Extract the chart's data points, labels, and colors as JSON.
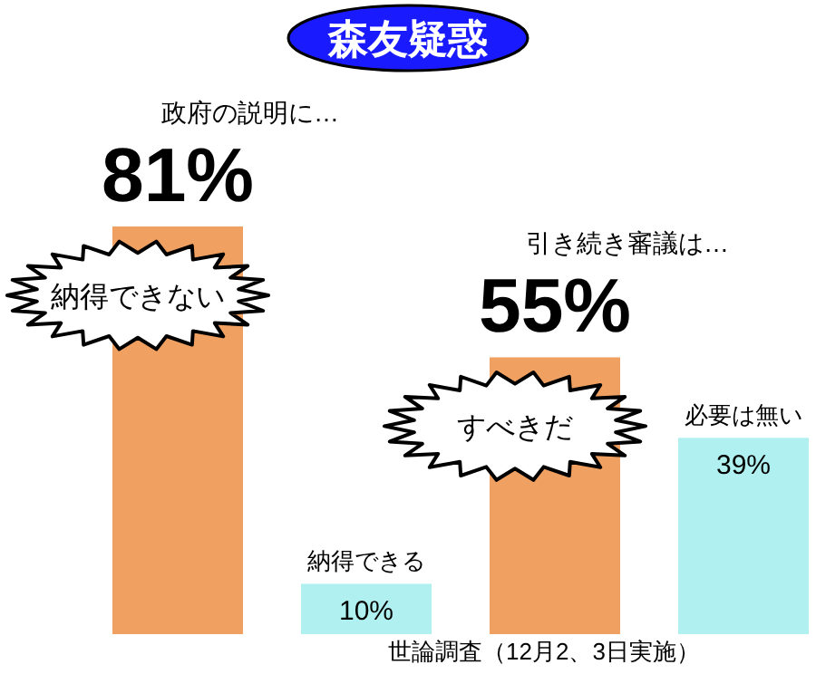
{
  "chart_data": {
    "type": "bar",
    "title": "森友疑惑",
    "categories": [
      "納得できない",
      "納得できる",
      "すべきだ",
      "必要は無い"
    ],
    "values": [
      81,
      10,
      55,
      39
    ],
    "colors": [
      "#f0a060",
      "#b0f0f0",
      "#f0a060",
      "#b0f0f0"
    ],
    "value_labels": [
      "81%",
      "10%",
      "55%",
      "39%"
    ],
    "annotations": [
      "政府の説明に…",
      "引き続き審議は…",
      "世論調査（12月2、3日実施）"
    ]
  }
}
